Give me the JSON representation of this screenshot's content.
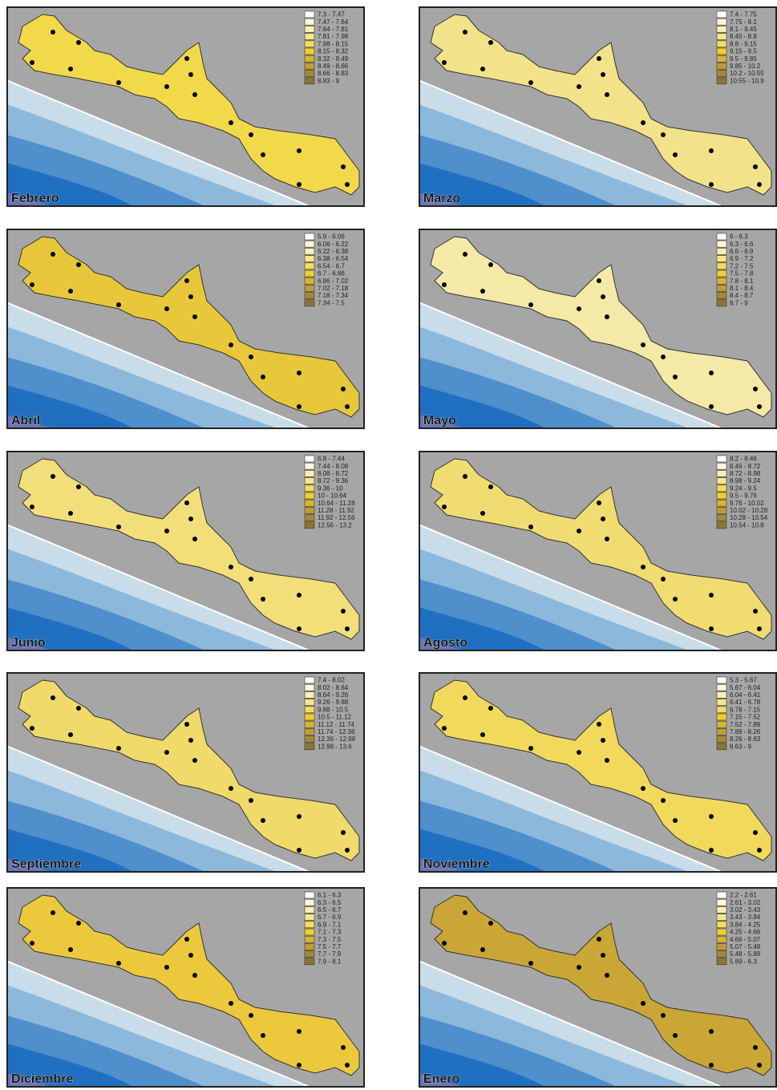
{
  "panels": [
    {
      "month": "Febrero",
      "region_color": "#f2d94a",
      "legend": [
        "7.3 - 7.47",
        "7.47 - 7.64",
        "7.64 - 7.81",
        "7.81 - 7.98",
        "7.98 - 8.15",
        "8.15 - 8.32",
        "8.32 - 8.49",
        "8.49 - 8.66",
        "8.66 - 8.83",
        "8.83 - 9"
      ]
    },
    {
      "month": "Marzo",
      "region_color": "#f2e28a",
      "legend": [
        "7.4 - 7.75",
        "7.75 - 8.1",
        "8.1 - 8.45",
        "8.45 - 8.8",
        "8.8 - 9.15",
        "9.15 - 9.5",
        "9.5 - 9.85",
        "9.85 - 10.2",
        "10.2 - 10.55",
        "10.55 - 10.9"
      ]
    },
    {
      "month": "Abril",
      "region_color": "#e8c83a",
      "legend": [
        "5.9 - 6.06",
        "6.06 - 6.22",
        "6.22 - 6.38",
        "6.38 - 6.54",
        "6.54 - 6.7",
        "6.7 - 6.86",
        "6.86 - 7.02",
        "7.02 - 7.18",
        "7.18 - 7.34",
        "7.34 - 7.5"
      ]
    },
    {
      "month": "Mayo",
      "region_color": "#f5e9a8",
      "legend": [
        "6 - 6.3",
        "6.3 - 6.6",
        "6.6 - 6.9",
        "6.9 - 7.2",
        "7.2 - 7.5",
        "7.5 - 7.8",
        "7.8 - 8.1",
        "8.1 - 8.4",
        "8.4 - 8.7",
        "8.7 - 9"
      ]
    },
    {
      "month": "Junio",
      "region_color": "#f3df7a",
      "legend": [
        "6.8 - 7.44",
        "7.44 - 8.08",
        "8.08 - 8.72",
        "8.72 - 9.36",
        "9.36 - 10",
        "10 - 10.64",
        "10.64 - 11.28",
        "11.28 - 11.92",
        "11.92 - 12.56",
        "12.56 - 13.2"
      ]
    },
    {
      "month": "Agosto",
      "region_color": "#f1dc72",
      "legend": [
        "8.2 - 8.46",
        "8.46 - 8.72",
        "8.72 - 8.98",
        "8.98 - 9.24",
        "9.24 - 9.5",
        "9.5 - 9.76",
        "9.76 - 10.02",
        "10.02 - 10.28",
        "10.28 - 10.54",
        "10.54 - 10.8"
      ]
    },
    {
      "month": "Septiembre",
      "region_color": "#f0da6a",
      "legend": [
        "7.4 - 8.02",
        "8.02 - 8.64",
        "8.64 - 9.26",
        "9.26 - 9.88",
        "9.88 - 10.5",
        "10.5 - 11.12",
        "11.12 - 11.74",
        "11.74 - 12.36",
        "12.36 - 12.98",
        "12.98 - 13.6"
      ]
    },
    {
      "month": "Noviembre",
      "region_color": "#f1d95c",
      "legend": [
        "5.3 - 5.67",
        "5.67 - 6.04",
        "6.04 - 6.41",
        "6.41 - 6.78",
        "6.78 - 7.15",
        "7.15 - 7.52",
        "7.52 - 7.89",
        "7.89 - 8.26",
        "8.26 - 8.63",
        "8.63 - 9"
      ]
    },
    {
      "month": "Diciembre",
      "region_color": "#ecc83c",
      "legend": [
        "6.1 - 6.3",
        "6.3 - 6.5",
        "6.5 - 6.7",
        "6.7 - 6.9",
        "6.9 - 7.1",
        "7.1 - 7.3",
        "7.3 - 7.5",
        "7.5 - 7.7",
        "7.7 - 7.9",
        "7.9 - 8.1"
      ]
    },
    {
      "month": "Enero",
      "region_color": "#c9a636",
      "legend": [
        "2.2 - 2.61",
        "2.61 - 3.02",
        "3.02 - 3.43",
        "3.43 - 3.84",
        "3.84 - 4.25",
        "4.25 - 4.66",
        "4.66 - 5.07",
        "5.07 - 5.48",
        "5.48 - 5.89",
        "5.89 - 6.3"
      ]
    }
  ],
  "legend_colors": [
    "#ffffff",
    "#fdf8dc",
    "#faf0b4",
    "#f7e68a",
    "#f5dc5c",
    "#f0cf2e",
    "#d8b530",
    "#bf9d34",
    "#a58836",
    "#8c7636"
  ]
}
